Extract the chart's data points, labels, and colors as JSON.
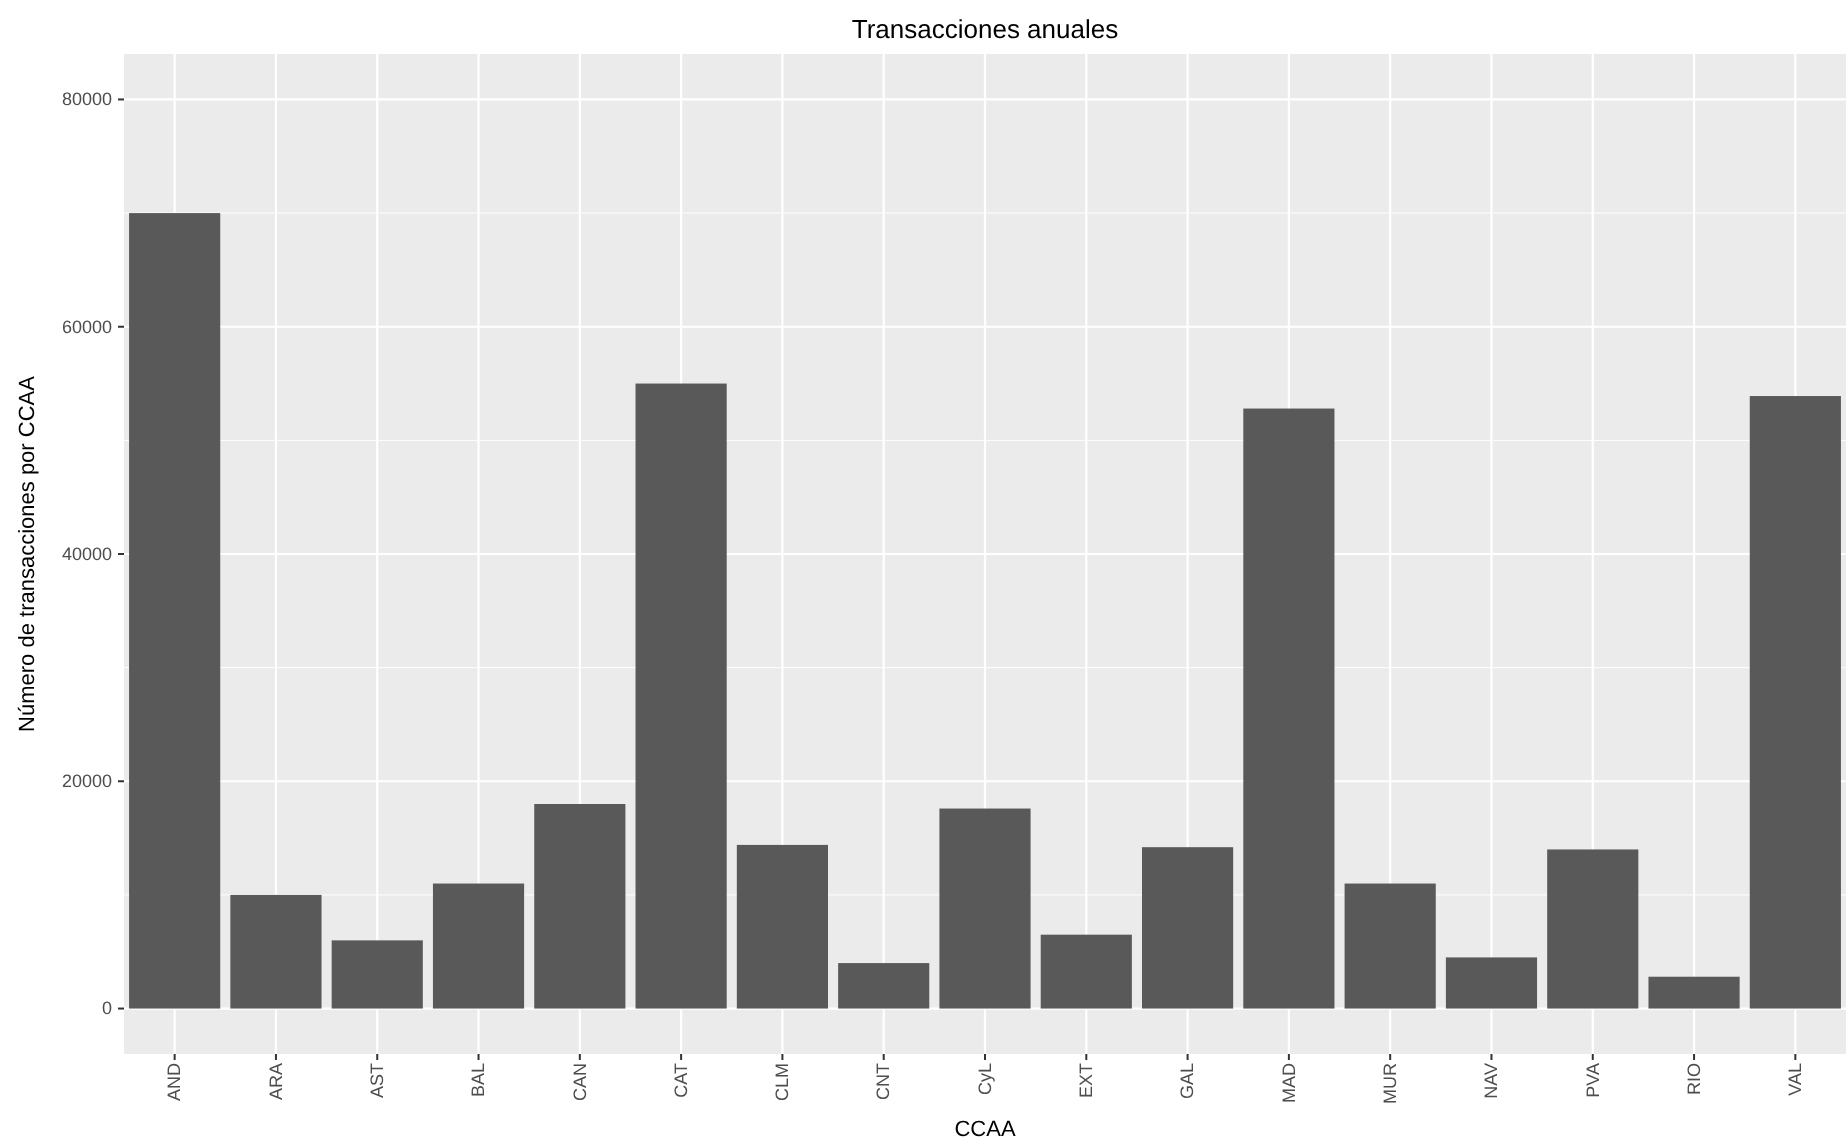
{
  "chart_data": {
    "type": "bar",
    "title": "Transacciones anuales",
    "xlabel": "CCAA",
    "ylabel": "Número de transacciones por CCAA",
    "categories": [
      "AND",
      "ARA",
      "AST",
      "BAL",
      "CAN",
      "CAT",
      "CLM",
      "CNT",
      "CyL",
      "EXT",
      "GAL",
      "MAD",
      "MUR",
      "NAV",
      "PVA",
      "RIO",
      "VAL"
    ],
    "values": [
      70000,
      10000,
      6000,
      11000,
      18000,
      55000,
      14400,
      4000,
      17600,
      6500,
      14200,
      52800,
      11000,
      4500,
      14000,
      2800,
      53900
    ],
    "color": "#595959",
    "ylim": [
      -4000,
      84000
    ],
    "yticks": [
      0,
      20000,
      40000,
      60000,
      80000
    ],
    "grid": true
  }
}
